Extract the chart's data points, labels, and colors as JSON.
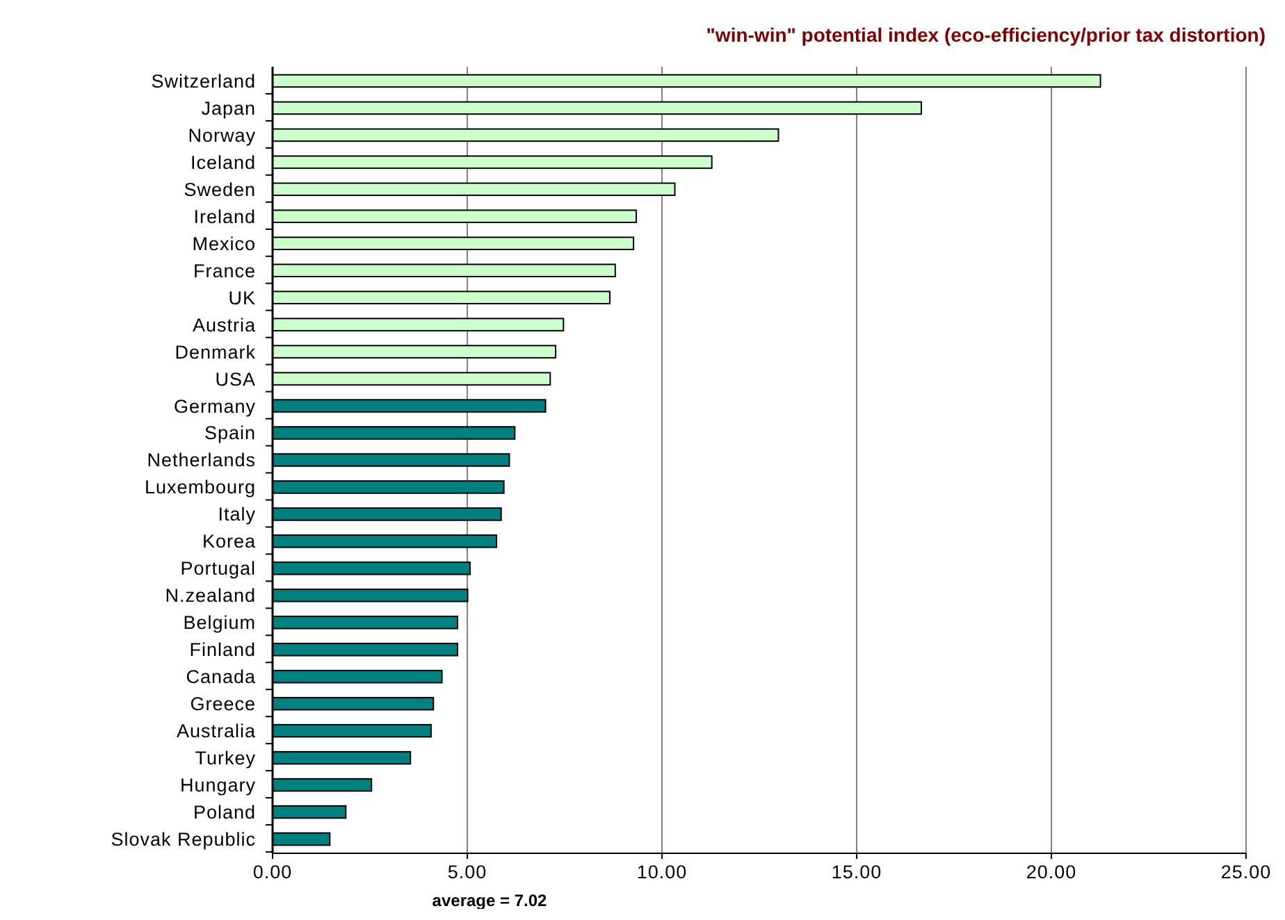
{
  "chart_data": {
    "type": "bar",
    "orientation": "horizontal",
    "title": "\"win-win\" potential index (eco-efficiency/prior tax distortion)",
    "xlabel": "average = 7.02",
    "categories": [
      "Switzerland",
      "Japan",
      "Norway",
      "Iceland",
      "Sweden",
      "Ireland",
      "Mexico",
      "France",
      "UK",
      "Austria",
      "Denmark",
      "USA",
      "Germany",
      "Spain",
      "Netherlands",
      "Luxembourg",
      "Italy",
      "Korea",
      "Portugal",
      "N.zealand",
      "Belgium",
      "Finland",
      "Canada",
      "Greece",
      "Australia",
      "Turkey",
      "Hungary",
      "Poland",
      "Slovak Republic"
    ],
    "values": [
      21.26,
      16.66,
      12.99,
      11.28,
      10.33,
      9.34,
      9.27,
      8.8,
      8.66,
      7.47,
      7.27,
      7.13,
      7.01,
      6.22,
      6.08,
      5.94,
      5.87,
      5.75,
      5.07,
      5.01,
      4.75,
      4.75,
      4.35,
      4.13,
      4.07,
      3.54,
      2.54,
      1.88,
      1.47
    ],
    "colors": [
      "#ccffcc",
      "#ccffcc",
      "#ccffcc",
      "#ccffcc",
      "#ccffcc",
      "#ccffcc",
      "#ccffcc",
      "#ccffcc",
      "#ccffcc",
      "#ccffcc",
      "#ccffcc",
      "#ccffcc",
      "#008080",
      "#008080",
      "#008080",
      "#008080",
      "#008080",
      "#008080",
      "#008080",
      "#008080",
      "#008080",
      "#008080",
      "#008080",
      "#008080",
      "#008080",
      "#008080",
      "#008080",
      "#008080",
      "#008080"
    ],
    "xlim": [
      0,
      25
    ],
    "xticks": [
      {
        "value": 0,
        "label": "0.00"
      },
      {
        "value": 5,
        "label": "5.00"
      },
      {
        "value": 10,
        "label": "10.00"
      },
      {
        "value": 15,
        "label": "15.00"
      },
      {
        "value": 20,
        "label": "20.00"
      },
      {
        "value": 25,
        "label": "25.00"
      }
    ],
    "grid": "x"
  }
}
